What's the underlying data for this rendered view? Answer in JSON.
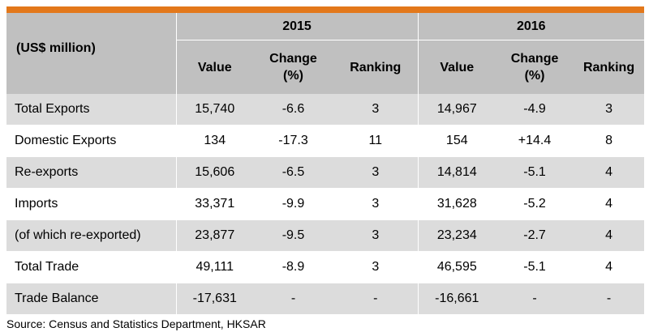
{
  "table": {
    "unit_label": "(US$ million)",
    "years": [
      "2015",
      "2016"
    ],
    "subheaders": {
      "value": "Value",
      "change_line1": "Change",
      "change_line2": "(%)",
      "ranking": "Ranking"
    },
    "rows": [
      {
        "label": "Total Exports",
        "v2015": "15,740",
        "c2015": "-6.6",
        "r2015": "3",
        "v2016": "14,967",
        "c2016": "-4.9",
        "r2016": "3"
      },
      {
        "label": "Domestic Exports",
        "v2015": "134",
        "c2015": "-17.3",
        "r2015": "11",
        "v2016": "154",
        "c2016": "+14.4",
        "r2016": "8"
      },
      {
        "label": "Re-exports",
        "v2015": "15,606",
        "c2015": "-6.5",
        "r2015": "3",
        "v2016": "14,814",
        "c2016": "-5.1",
        "r2016": "4"
      },
      {
        "label": "Imports",
        "v2015": "33,371",
        "c2015": "-9.9",
        "r2015": "3",
        "v2016": "31,628",
        "c2016": "-5.2",
        "r2016": "4"
      },
      {
        "label": "(of which re-exported)",
        "v2015": "23,877",
        "c2015": "-9.5",
        "r2015": "3",
        "v2016": "23,234",
        "c2016": "-2.7",
        "r2016": "4"
      },
      {
        "label": "Total Trade",
        "v2015": "49,111",
        "c2015": "-8.9",
        "r2015": "3",
        "v2016": "46,595",
        "c2016": "-5.1",
        "r2016": "4"
      },
      {
        "label": "Trade Balance",
        "v2015": "-17,631",
        "c2015": "-",
        "r2015": "-",
        "v2016": "-16,661",
        "c2016": "-",
        "r2016": "-"
      }
    ]
  },
  "source": "Source: Census and Statistics Department, HKSAR",
  "colors": {
    "accent_bar": "#e3781b",
    "header_bg": "#c0c0c0",
    "shaded_row_bg": "#dcdcdc"
  }
}
